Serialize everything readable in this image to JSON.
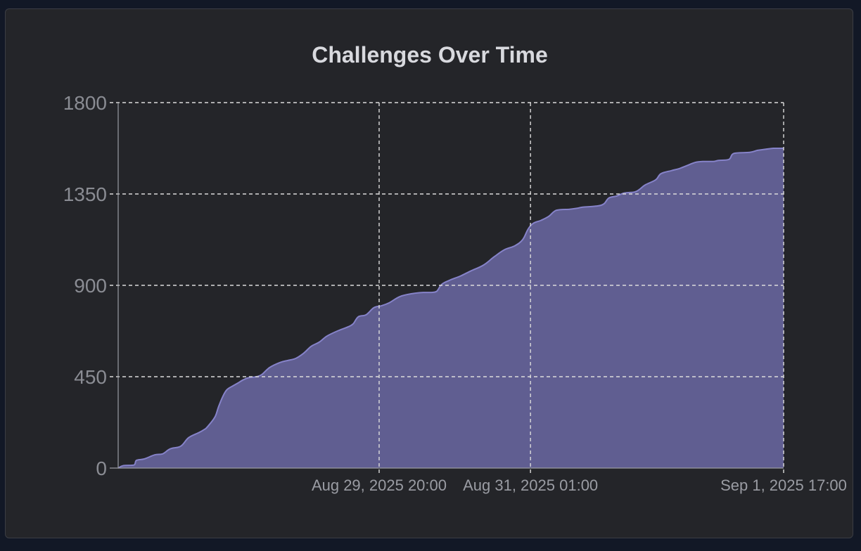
{
  "chart_data": {
    "type": "area",
    "title": "Challenges Over Time",
    "xlabel": "",
    "ylabel": "",
    "ylim": [
      0,
      1800
    ],
    "yticks": [
      0,
      450,
      900,
      1350,
      1800
    ],
    "xlim_hours": [
      0,
      127.5
    ],
    "xticks": [
      {
        "label": "Aug 29, 2025 20:00"
      },
      {
        "label": "Aug 31, 2025 01:00"
      },
      {
        "label": "Sep 1, 2025 17:00"
      }
    ],
    "grid": true,
    "colors": {
      "fill": "#605e91",
      "line": "#8683c9",
      "grid": "#dcdcdc",
      "background": "#242529"
    },
    "series": [
      {
        "values_by_time": [
          [
            0,
            0
          ],
          [
            1,
            12
          ],
          [
            3,
            15
          ],
          [
            3.5,
            38
          ],
          [
            5,
            45
          ],
          [
            7,
            65
          ],
          [
            8.5,
            70
          ],
          [
            10,
            95
          ],
          [
            12,
            108
          ],
          [
            13.5,
            150
          ],
          [
            15.5,
            175
          ],
          [
            16.5,
            190
          ],
          [
            17,
            200
          ],
          [
            18.5,
            250
          ],
          [
            19.2,
            300
          ],
          [
            20,
            350
          ],
          [
            20.8,
            385
          ],
          [
            22,
            405
          ],
          [
            23,
            420
          ],
          [
            24,
            435
          ],
          [
            25,
            445
          ],
          [
            26.5,
            450
          ],
          [
            27.5,
            460
          ],
          [
            29,
            495
          ],
          [
            31,
            520
          ],
          [
            32.5,
            530
          ],
          [
            34,
            540
          ],
          [
            35.5,
            565
          ],
          [
            37,
            600
          ],
          [
            38.5,
            620
          ],
          [
            40,
            650
          ],
          [
            42,
            675
          ],
          [
            44,
            695
          ],
          [
            45,
            710
          ],
          [
            46,
            745
          ],
          [
            47.5,
            755
          ],
          [
            49,
            790
          ],
          [
            50.5,
            800
          ],
          [
            52,
            815
          ],
          [
            54,
            845
          ],
          [
            56.5,
            860
          ],
          [
            58.5,
            865
          ],
          [
            60,
            865
          ],
          [
            61,
            870
          ],
          [
            62,
            905
          ],
          [
            63.5,
            925
          ],
          [
            65.5,
            945
          ],
          [
            67.5,
            970
          ],
          [
            70,
            1000
          ],
          [
            72,
            1040
          ],
          [
            74,
            1075
          ],
          [
            76,
            1095
          ],
          [
            77.5,
            1125
          ],
          [
            78.5,
            1175
          ],
          [
            79.5,
            1205
          ],
          [
            81,
            1220
          ],
          [
            82.5,
            1240
          ],
          [
            84,
            1270
          ],
          [
            86.5,
            1275
          ],
          [
            88,
            1280
          ],
          [
            89,
            1285
          ],
          [
            91.5,
            1290
          ],
          [
            93,
            1300
          ],
          [
            94,
            1330
          ],
          [
            95.5,
            1340
          ],
          [
            97,
            1355
          ],
          [
            99,
            1360
          ],
          [
            100,
            1375
          ],
          [
            101,
            1395
          ],
          [
            103,
            1420
          ],
          [
            104,
            1450
          ],
          [
            106,
            1465
          ],
          [
            107.5,
            1475
          ],
          [
            109,
            1490
          ],
          [
            110.5,
            1505
          ],
          [
            112,
            1510
          ],
          [
            114,
            1510
          ],
          [
            115,
            1515
          ],
          [
            117,
            1520
          ],
          [
            118,
            1550
          ],
          [
            121,
            1555
          ],
          [
            122.5,
            1565
          ],
          [
            124,
            1570
          ],
          [
            125.5,
            1575
          ],
          [
            127.5,
            1575
          ]
        ]
      }
    ]
  }
}
